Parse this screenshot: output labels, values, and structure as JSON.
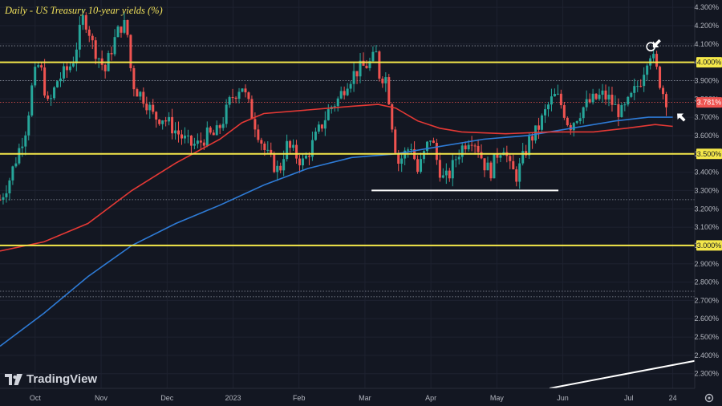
{
  "title": "Daily - US Treasury 10-year yields (%)",
  "brand": {
    "name": "TradingView"
  },
  "icons": {
    "logo": "tradingview-logo-icon",
    "settings": "gear-icon"
  },
  "colors": {
    "up": "#26a69a",
    "down": "#ef5350",
    "ma_fast": "#e53935",
    "ma_slow": "#2e7bd6",
    "level_line": "#f5e84a",
    "support_line": "#ffffff",
    "background": "#131722"
  },
  "chart_data": {
    "type": "candlestick",
    "ylim": [
      2.22,
      4.34
    ],
    "y_ticks": [
      "4.300%",
      "4.200%",
      "4.100%",
      "4.000%",
      "3.900%",
      "3.800%",
      "3.700%",
      "3.600%",
      "3.500%",
      "3.400%",
      "3.300%",
      "3.200%",
      "3.100%",
      "3.000%",
      "2.900%",
      "2.800%",
      "2.700%",
      "2.600%",
      "2.500%",
      "2.400%",
      "2.300%"
    ],
    "x_ticks": [
      "Oct",
      "Nov",
      "Dec",
      "2023",
      "Feb",
      "Mar",
      "Apr",
      "May",
      "Jun",
      "Jul",
      "24"
    ],
    "x_tick_days": [
      16,
      46,
      76,
      106,
      136,
      166,
      196,
      226,
      256,
      286,
      306
    ],
    "x_range": [
      0,
      316
    ],
    "current_price_label": "3.781%",
    "current_price": 3.781,
    "horizontal_levels": [
      {
        "value": 4.0,
        "label": "4.000%"
      },
      {
        "value": 3.5,
        "label": "3.500%"
      },
      {
        "value": 3.0,
        "label": "3.000%"
      }
    ],
    "dotted_levels": [
      4.09,
      3.9,
      3.25,
      2.75,
      2.72
    ],
    "support_segment": {
      "value": 3.3,
      "from_day": 169,
      "to_day": 254
    },
    "trendline": {
      "from": [
        250,
        2.22
      ],
      "to": [
        316,
        2.37
      ]
    },
    "anchors": [
      [
        0,
        3.25
      ],
      [
        4,
        3.35
      ],
      [
        8,
        3.5
      ],
      [
        12,
        3.65
      ],
      [
        15,
        3.9
      ],
      [
        18,
        4.0
      ],
      [
        22,
        3.75
      ],
      [
        26,
        3.9
      ],
      [
        30,
        3.95
      ],
      [
        33,
        4.0
      ],
      [
        36,
        4.15
      ],
      [
        38,
        4.25
      ],
      [
        40,
        4.2
      ],
      [
        42,
        4.1
      ],
      [
        44,
        4.05
      ],
      [
        46,
        4.0
      ],
      [
        48,
        3.95
      ],
      [
        50,
        4.05
      ],
      [
        53,
        4.15
      ],
      [
        56,
        4.22
      ],
      [
        58,
        4.15
      ],
      [
        60,
        3.9
      ],
      [
        62,
        3.85
      ],
      [
        66,
        3.8
      ],
      [
        70,
        3.7
      ],
      [
        74,
        3.7
      ],
      [
        78,
        3.65
      ],
      [
        82,
        3.6
      ],
      [
        86,
        3.55
      ],
      [
        90,
        3.55
      ],
      [
        94,
        3.6
      ],
      [
        98,
        3.6
      ],
      [
        102,
        3.7
      ],
      [
        105,
        3.8
      ],
      [
        108,
        3.85
      ],
      [
        110,
        3.88
      ],
      [
        112,
        3.8
      ],
      [
        115,
        3.7
      ],
      [
        118,
        3.6
      ],
      [
        121,
        3.5
      ],
      [
        124,
        3.45
      ],
      [
        127,
        3.4
      ],
      [
        130,
        3.55
      ],
      [
        134,
        3.5
      ],
      [
        138,
        3.45
      ],
      [
        142,
        3.55
      ],
      [
        146,
        3.65
      ],
      [
        150,
        3.75
      ],
      [
        154,
        3.8
      ],
      [
        158,
        3.9
      ],
      [
        162,
        3.95
      ],
      [
        166,
        3.98
      ],
      [
        169,
        4.0
      ],
      [
        171,
        4.05
      ],
      [
        173,
        3.9
      ],
      [
        175,
        3.95
      ],
      [
        177,
        3.8
      ],
      [
        179,
        3.6
      ],
      [
        181,
        3.45
      ],
      [
        184,
        3.5
      ],
      [
        187,
        3.55
      ],
      [
        190,
        3.4
      ],
      [
        193,
        3.5
      ],
      [
        196,
        3.6
      ],
      [
        199,
        3.45
      ],
      [
        202,
        3.35
      ],
      [
        205,
        3.4
      ],
      [
        208,
        3.5
      ],
      [
        211,
        3.55
      ],
      [
        214,
        3.6
      ],
      [
        217,
        3.55
      ],
      [
        220,
        3.45
      ],
      [
        223,
        3.4
      ],
      [
        226,
        3.5
      ],
      [
        229,
        3.55
      ],
      [
        232,
        3.42
      ],
      [
        235,
        3.38
      ],
      [
        238,
        3.48
      ],
      [
        241,
        3.58
      ],
      [
        244,
        3.62
      ],
      [
        247,
        3.7
      ],
      [
        250,
        3.78
      ],
      [
        253,
        3.82
      ],
      [
        256,
        3.75
      ],
      [
        259,
        3.65
      ],
      [
        262,
        3.7
      ],
      [
        265,
        3.75
      ],
      [
        268,
        3.78
      ],
      [
        271,
        3.8
      ],
      [
        274,
        3.82
      ],
      [
        277,
        3.8
      ],
      [
        280,
        3.75
      ],
      [
        283,
        3.72
      ],
      [
        286,
        3.78
      ],
      [
        289,
        3.85
      ],
      [
        292,
        3.92
      ],
      [
        294,
        4.02
      ],
      [
        296,
        4.06
      ],
      [
        298,
        3.98
      ],
      [
        300,
        3.9
      ],
      [
        302,
        3.82
      ],
      [
        304,
        3.78
      ]
    ],
    "ma_fast": [
      [
        0,
        2.97
      ],
      [
        20,
        3.02
      ],
      [
        40,
        3.12
      ],
      [
        60,
        3.3
      ],
      [
        80,
        3.45
      ],
      [
        100,
        3.58
      ],
      [
        110,
        3.67
      ],
      [
        120,
        3.72
      ],
      [
        140,
        3.74
      ],
      [
        160,
        3.76
      ],
      [
        172,
        3.77
      ],
      [
        180,
        3.75
      ],
      [
        190,
        3.68
      ],
      [
        200,
        3.64
      ],
      [
        210,
        3.62
      ],
      [
        230,
        3.61
      ],
      [
        250,
        3.62
      ],
      [
        270,
        3.62
      ],
      [
        285,
        3.64
      ],
      [
        298,
        3.66
      ],
      [
        306,
        3.65
      ]
    ],
    "ma_slow": [
      [
        0,
        2.45
      ],
      [
        20,
        2.63
      ],
      [
        40,
        2.83
      ],
      [
        60,
        3.0
      ],
      [
        80,
        3.12
      ],
      [
        100,
        3.22
      ],
      [
        120,
        3.33
      ],
      [
        140,
        3.42
      ],
      [
        160,
        3.48
      ],
      [
        180,
        3.5
      ],
      [
        200,
        3.54
      ],
      [
        220,
        3.58
      ],
      [
        240,
        3.6
      ],
      [
        260,
        3.64
      ],
      [
        280,
        3.68
      ],
      [
        295,
        3.7
      ],
      [
        306,
        3.7
      ]
    ],
    "arrows": [
      {
        "day": 297,
        "value": 4.08,
        "label": "",
        "dir": "down-left"
      },
      {
        "day": 308,
        "value": 3.72,
        "label": "",
        "dir": "up-left"
      }
    ],
    "circle_marker": {
      "day": 296,
      "value": 4.085
    }
  }
}
